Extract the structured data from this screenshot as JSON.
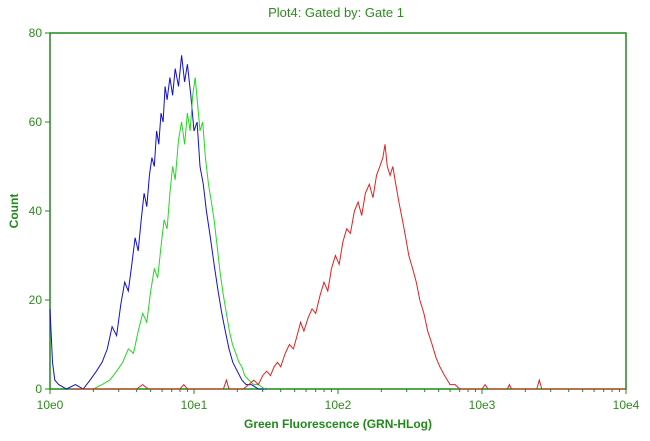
{
  "chart_data": {
    "type": "line",
    "title": "Plot4:  Gated by: Gate 1",
    "xlabel": "Green Fluorescence (GRN-HLog)",
    "ylabel": "Count",
    "x_scale": "log",
    "xlim": [
      1,
      10000
    ],
    "ylim": [
      0,
      80
    ],
    "x_tick_labels": [
      "10e0",
      "10e1",
      "10e2",
      "10e3",
      "10e4"
    ],
    "x_tick_values": [
      1,
      10,
      100,
      1000,
      10000
    ],
    "y_ticks": [
      0,
      20,
      40,
      60,
      80
    ],
    "grid": false,
    "axis_color": "#1f8a1a",
    "series": [
      {
        "color": "#1010cc",
        "points": [
          [
            1.0,
            18
          ],
          [
            1.04,
            6
          ],
          [
            1.08,
            2
          ],
          [
            1.15,
            1
          ],
          [
            1.3,
            0
          ],
          [
            1.5,
            1
          ],
          [
            1.7,
            0
          ],
          [
            1.9,
            2
          ],
          [
            2.1,
            4
          ],
          [
            2.3,
            6
          ],
          [
            2.5,
            9
          ],
          [
            2.7,
            14
          ],
          [
            2.9,
            12
          ],
          [
            3.1,
            19
          ],
          [
            3.3,
            24
          ],
          [
            3.5,
            22
          ],
          [
            3.7,
            28
          ],
          [
            3.9,
            34
          ],
          [
            4.1,
            31
          ],
          [
            4.3,
            38
          ],
          [
            4.5,
            44
          ],
          [
            4.7,
            41
          ],
          [
            4.9,
            48
          ],
          [
            5.1,
            52
          ],
          [
            5.3,
            50
          ],
          [
            5.5,
            58
          ],
          [
            5.7,
            55
          ],
          [
            5.9,
            62
          ],
          [
            6.1,
            60
          ],
          [
            6.3,
            68
          ],
          [
            6.5,
            65
          ],
          [
            6.8,
            70
          ],
          [
            7.1,
            66
          ],
          [
            7.4,
            72
          ],
          [
            7.8,
            68
          ],
          [
            8.2,
            75
          ],
          [
            8.6,
            69
          ],
          [
            9.0,
            73
          ],
          [
            9.5,
            66
          ],
          [
            10.0,
            58
          ],
          [
            10.5,
            60
          ],
          [
            11.0,
            50
          ],
          [
            11.6,
            46
          ],
          [
            12.2,
            40
          ],
          [
            13.0,
            34
          ],
          [
            13.8,
            28
          ],
          [
            14.7,
            22
          ],
          [
            15.6,
            17
          ],
          [
            16.5,
            13
          ],
          [
            17.5,
            9
          ],
          [
            18.6,
            6
          ],
          [
            20.0,
            4
          ],
          [
            21.5,
            2
          ],
          [
            23.0,
            1
          ],
          [
            25.0,
            1
          ],
          [
            28.0,
            0
          ],
          [
            32.0,
            0
          ]
        ]
      },
      {
        "color": "#22d822",
        "points": [
          [
            2.0,
            0
          ],
          [
            2.3,
            1
          ],
          [
            2.6,
            2
          ],
          [
            2.9,
            4
          ],
          [
            3.2,
            6
          ],
          [
            3.5,
            9
          ],
          [
            3.8,
            8
          ],
          [
            4.1,
            13
          ],
          [
            4.4,
            17
          ],
          [
            4.7,
            15
          ],
          [
            5.0,
            22
          ],
          [
            5.3,
            27
          ],
          [
            5.6,
            25
          ],
          [
            5.9,
            32
          ],
          [
            6.2,
            38
          ],
          [
            6.5,
            36
          ],
          [
            6.8,
            44
          ],
          [
            7.1,
            50
          ],
          [
            7.4,
            47
          ],
          [
            7.8,
            56
          ],
          [
            8.2,
            60
          ],
          [
            8.6,
            55
          ],
          [
            9.0,
            62
          ],
          [
            9.4,
            58
          ],
          [
            9.8,
            66
          ],
          [
            10.2,
            70
          ],
          [
            10.6,
            64
          ],
          [
            11.0,
            58
          ],
          [
            11.5,
            60
          ],
          [
            12.0,
            52
          ],
          [
            12.6,
            46
          ],
          [
            13.2,
            42
          ],
          [
            13.8,
            38
          ],
          [
            14.5,
            32
          ],
          [
            15.2,
            26
          ],
          [
            16.0,
            21
          ],
          [
            16.8,
            17
          ],
          [
            17.6,
            13
          ],
          [
            18.5,
            10
          ],
          [
            19.5,
            8
          ],
          [
            20.5,
            6
          ],
          [
            21.5,
            5
          ],
          [
            22.5,
            3
          ],
          [
            24.0,
            2
          ],
          [
            26.0,
            1
          ],
          [
            28.0,
            1
          ],
          [
            31.0,
            0
          ]
        ]
      },
      {
        "color": "#e02020",
        "points": [
          [
            1.4,
            0
          ],
          [
            2.0,
            0
          ],
          [
            4.0,
            0
          ],
          [
            4.4,
            1
          ],
          [
            4.8,
            0
          ],
          [
            8.0,
            0
          ],
          [
            8.5,
            1
          ],
          [
            9.0,
            0
          ],
          [
            16.0,
            0
          ],
          [
            16.8,
            2
          ],
          [
            17.5,
            0
          ],
          [
            22.0,
            0
          ],
          [
            24.0,
            1
          ],
          [
            26.0,
            2
          ],
          [
            28.0,
            1
          ],
          [
            30.0,
            3
          ],
          [
            32.0,
            4
          ],
          [
            34.0,
            3
          ],
          [
            36.0,
            5
          ],
          [
            38.0,
            6
          ],
          [
            40.0,
            5
          ],
          [
            43.0,
            8
          ],
          [
            46.0,
            10
          ],
          [
            49.0,
            9
          ],
          [
            52.0,
            12
          ],
          [
            55.0,
            15
          ],
          [
            58.0,
            13
          ],
          [
            62.0,
            16
          ],
          [
            66.0,
            18
          ],
          [
            70.0,
            17
          ],
          [
            75.0,
            21
          ],
          [
            80.0,
            24
          ],
          [
            85.0,
            22
          ],
          [
            90.0,
            27
          ],
          [
            96.0,
            30
          ],
          [
            102.0,
            28
          ],
          [
            108.0,
            33
          ],
          [
            115.0,
            36
          ],
          [
            122.0,
            35
          ],
          [
            130.0,
            40
          ],
          [
            138.0,
            42
          ],
          [
            146.0,
            39
          ],
          [
            155.0,
            44
          ],
          [
            165.0,
            46
          ],
          [
            175.0,
            43
          ],
          [
            185.0,
            48
          ],
          [
            195.0,
            50
          ],
          [
            205.0,
            52
          ],
          [
            212.0,
            55
          ],
          [
            220.0,
            50
          ],
          [
            230.0,
            48
          ],
          [
            240.0,
            50
          ],
          [
            252.0,
            46
          ],
          [
            265.0,
            42
          ],
          [
            280.0,
            38
          ],
          [
            295.0,
            34
          ],
          [
            310.0,
            30
          ],
          [
            330.0,
            27
          ],
          [
            350.0,
            24
          ],
          [
            370.0,
            20
          ],
          [
            395.0,
            17
          ],
          [
            420.0,
            13
          ],
          [
            450.0,
            10
          ],
          [
            480.0,
            7
          ],
          [
            510.0,
            5
          ],
          [
            550.0,
            3
          ],
          [
            600.0,
            1
          ],
          [
            650.0,
            1
          ],
          [
            700.0,
            0
          ],
          [
            1000.0,
            0
          ],
          [
            1050.0,
            1
          ],
          [
            1100.0,
            0
          ],
          [
            1500.0,
            0
          ],
          [
            1550.0,
            1
          ],
          [
            1600.0,
            0
          ],
          [
            2400.0,
            0
          ],
          [
            2500.0,
            2
          ],
          [
            2600.0,
            0
          ],
          [
            10000.0,
            0
          ]
        ]
      }
    ]
  }
}
